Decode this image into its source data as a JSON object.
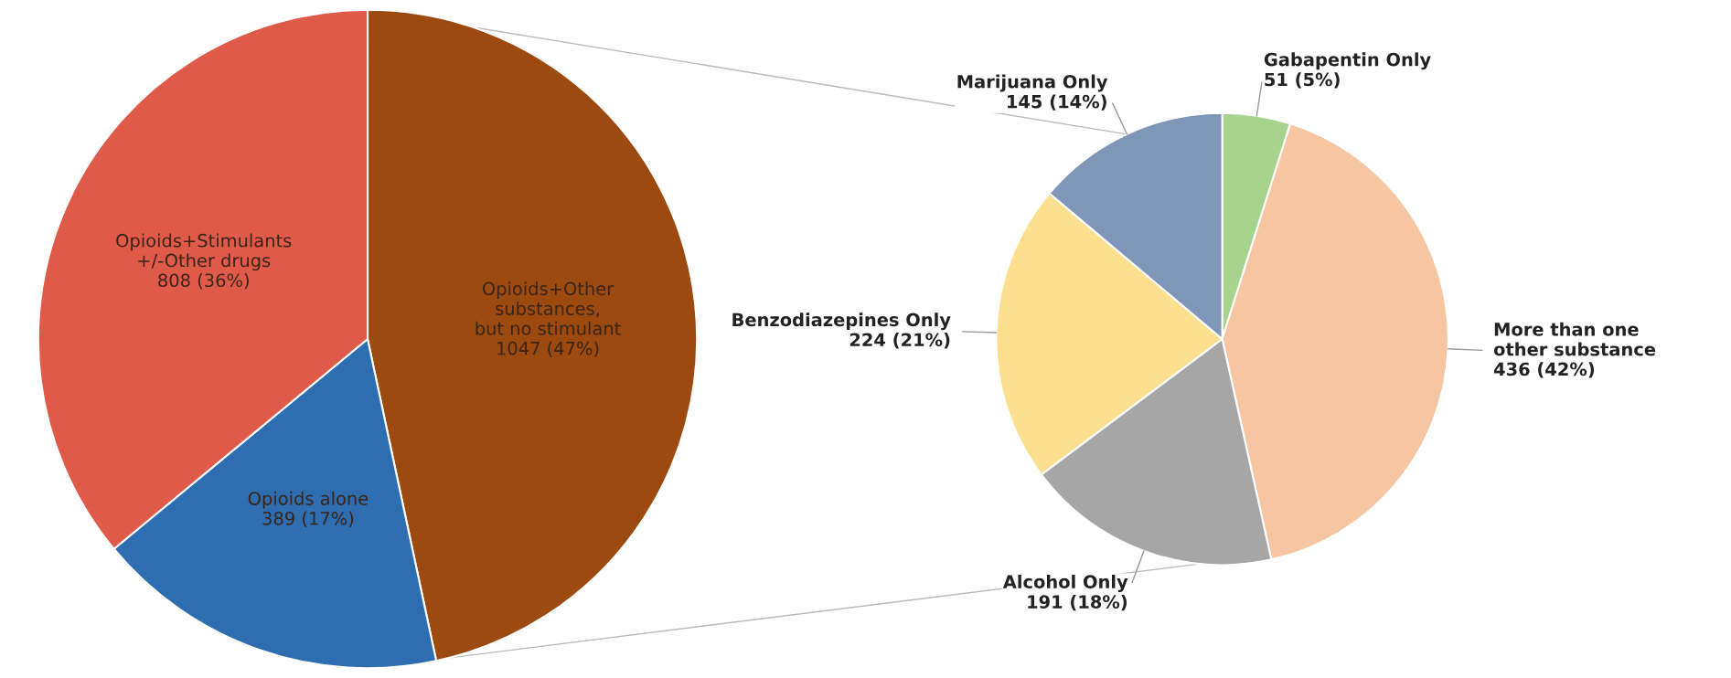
{
  "chart_data": [
    {
      "type": "pie",
      "categories": [
        "Opioids+Other\nsubstances,\nbut no stimulant",
        "Opioids alone",
        "Opioids+Stimulants\n+/-Other drugs"
      ],
      "values": [
        1047,
        389,
        808
      ],
      "value_labels": [
        "1047 (47%)",
        "389 (17%)",
        "808 (36%)"
      ],
      "colors": [
        "#9c4a0f",
        "#2e6db0",
        "#e05a4a"
      ]
    },
    {
      "type": "pie",
      "categories": [
        "Gabapentin Only",
        "More than one\nother substance",
        "Alcohol Only",
        "Benzodiazepines Only",
        "Marijuana Only"
      ],
      "values": [
        51,
        436,
        191,
        224,
        145
      ],
      "value_labels": [
        "51 (5%)",
        "436 (42%)",
        "191 (18%)",
        "224 (21%)",
        "145 (14%)"
      ],
      "colors": [
        "#a6d48f",
        "#f6c6a2",
        "#a6a6a6",
        "#fde08f",
        "#8096b8"
      ]
    }
  ]
}
